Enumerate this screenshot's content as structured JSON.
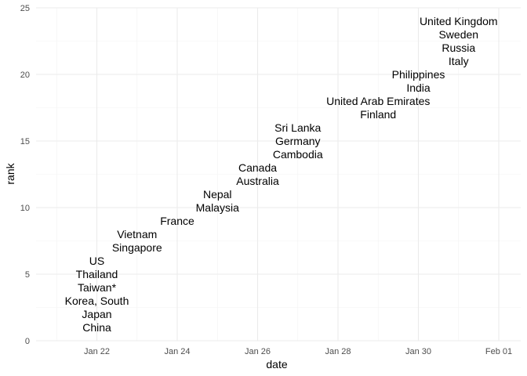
{
  "chart_data": {
    "type": "scatter",
    "mark": "text",
    "xlabel": "date",
    "ylabel": "rank",
    "x_scale": "date",
    "xlim": [
      "2020-01-20",
      "2020-02-01"
    ],
    "ylim": [
      0,
      25
    ],
    "x_ticks": [
      {
        "date": "2020-01-22",
        "label": "Jan 22"
      },
      {
        "date": "2020-01-24",
        "label": "Jan 24"
      },
      {
        "date": "2020-01-26",
        "label": "Jan 26"
      },
      {
        "date": "2020-01-28",
        "label": "Jan 28"
      },
      {
        "date": "2020-01-30",
        "label": "Jan 30"
      },
      {
        "date": "2020-02-01",
        "label": "Feb 01"
      }
    ],
    "y_ticks": [
      0,
      5,
      10,
      15,
      20,
      25
    ],
    "grid": true,
    "legend": "none",
    "points": [
      {
        "label": "China",
        "date": "2020-01-22",
        "rank": 1
      },
      {
        "label": "Japan",
        "date": "2020-01-22",
        "rank": 2
      },
      {
        "label": "Korea, South",
        "date": "2020-01-22",
        "rank": 3
      },
      {
        "label": "Taiwan*",
        "date": "2020-01-22",
        "rank": 4
      },
      {
        "label": "Thailand",
        "date": "2020-01-22",
        "rank": 5
      },
      {
        "label": "US",
        "date": "2020-01-22",
        "rank": 6
      },
      {
        "label": "Singapore",
        "date": "2020-01-23",
        "rank": 7
      },
      {
        "label": "Vietnam",
        "date": "2020-01-23",
        "rank": 8
      },
      {
        "label": "France",
        "date": "2020-01-24",
        "rank": 9
      },
      {
        "label": "Malaysia",
        "date": "2020-01-25",
        "rank": 10
      },
      {
        "label": "Nepal",
        "date": "2020-01-25",
        "rank": 11
      },
      {
        "label": "Australia",
        "date": "2020-01-26",
        "rank": 12
      },
      {
        "label": "Canada",
        "date": "2020-01-26",
        "rank": 13
      },
      {
        "label": "Cambodia",
        "date": "2020-01-27",
        "rank": 14
      },
      {
        "label": "Germany",
        "date": "2020-01-27",
        "rank": 15
      },
      {
        "label": "Sri Lanka",
        "date": "2020-01-27",
        "rank": 16
      },
      {
        "label": "Finland",
        "date": "2020-01-29",
        "rank": 17
      },
      {
        "label": "United Arab Emirates",
        "date": "2020-01-29",
        "rank": 18
      },
      {
        "label": "India",
        "date": "2020-01-30",
        "rank": 19
      },
      {
        "label": "Philippines",
        "date": "2020-01-30",
        "rank": 20
      },
      {
        "label": "Italy",
        "date": "2020-01-31",
        "rank": 21
      },
      {
        "label": "Russia",
        "date": "2020-01-31",
        "rank": 22
      },
      {
        "label": "Sweden",
        "date": "2020-01-31",
        "rank": 23
      },
      {
        "label": "United Kingdom",
        "date": "2020-01-31",
        "rank": 24
      }
    ]
  }
}
